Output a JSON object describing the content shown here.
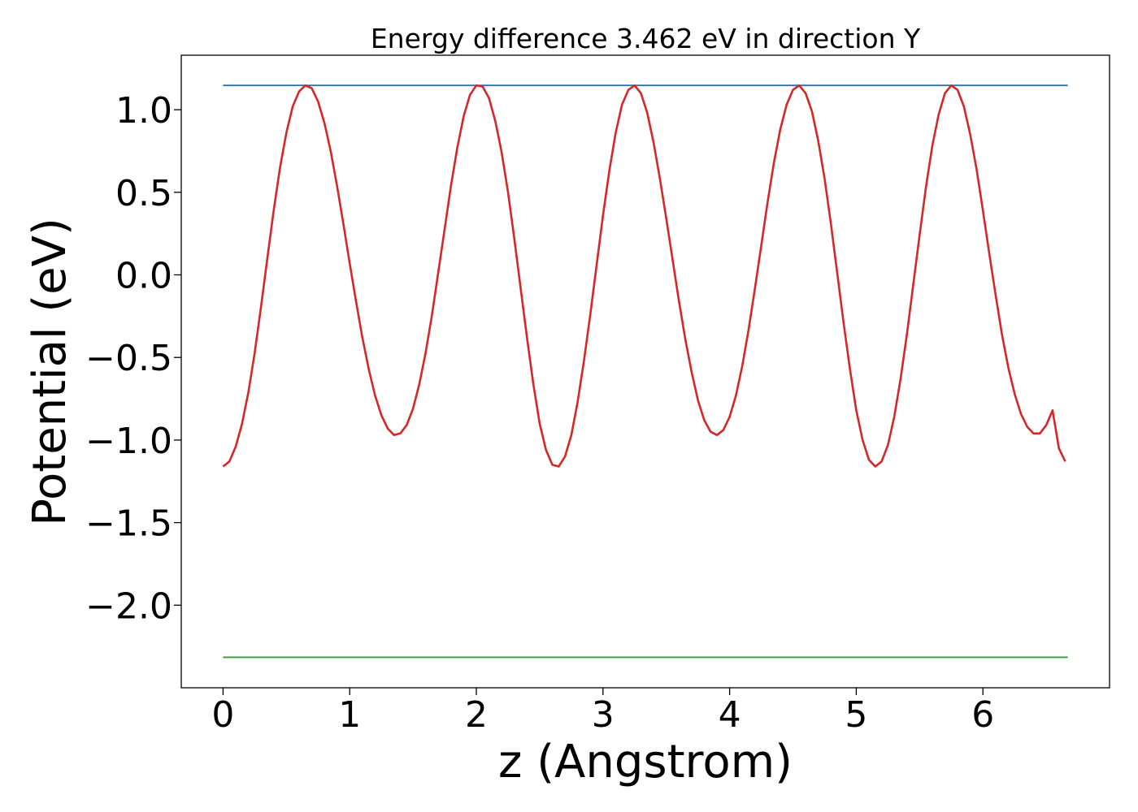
{
  "chart_data": {
    "type": "line",
    "title": "Energy difference 3.462 eV in direction Y",
    "xlabel": "z (Angstrom)",
    "ylabel": "Potential (eV)",
    "xlim": [
      -0.33,
      7.0
    ],
    "ylim": [
      -2.5,
      1.33
    ],
    "xticks": [
      0,
      1,
      2,
      3,
      4,
      5,
      6
    ],
    "xtick_labels": [
      "0",
      "1",
      "2",
      "3",
      "4",
      "5",
      "6"
    ],
    "yticks": [
      1.0,
      0.5,
      0.0,
      -0.5,
      -1.0,
      -1.5,
      -2.0
    ],
    "ytick_labels": [
      "1.0",
      "0.5",
      "0.0",
      "−0.5",
      "−1.0",
      "−1.5",
      "−2.0"
    ],
    "grid": false,
    "series": [
      {
        "color": "#1f77b4",
        "x": [
          0.0,
          6.67
        ],
        "y": [
          1.147,
          1.147
        ]
      },
      {
        "color": "#2ca02c",
        "x": [
          0.0,
          6.67
        ],
        "y": [
          -2.315,
          -2.315
        ]
      },
      {
        "color": "#d62728",
        "x": [
          0.0,
          0.05,
          0.1,
          0.15,
          0.2,
          0.25,
          0.3,
          0.35,
          0.4,
          0.45,
          0.5,
          0.55,
          0.6,
          0.65,
          0.7,
          0.75,
          0.8,
          0.85,
          0.9,
          0.95,
          1.0,
          1.05,
          1.1,
          1.15,
          1.2,
          1.25,
          1.3,
          1.35,
          1.4,
          1.45,
          1.5,
          1.55,
          1.6,
          1.65,
          1.7,
          1.75,
          1.8,
          1.85,
          1.9,
          1.95,
          2.0,
          2.05,
          2.1,
          2.15,
          2.2,
          2.25,
          2.3,
          2.35,
          2.4,
          2.45,
          2.5,
          2.55,
          2.6,
          2.65,
          2.7,
          2.75,
          2.8,
          2.85,
          2.9,
          2.95,
          3.0,
          3.05,
          3.1,
          3.15,
          3.2,
          3.25,
          3.3,
          3.35,
          3.4,
          3.45,
          3.5,
          3.55,
          3.6,
          3.65,
          3.7,
          3.75,
          3.8,
          3.85,
          3.9,
          3.95,
          4.0,
          4.05,
          4.1,
          4.15,
          4.2,
          4.25,
          4.3,
          4.35,
          4.4,
          4.45,
          4.5,
          4.55,
          4.6,
          4.65,
          4.7,
          4.75,
          4.8,
          4.85,
          4.9,
          4.95,
          5.0,
          5.05,
          5.1,
          5.15,
          5.2,
          5.25,
          5.3,
          5.35,
          5.4,
          5.45,
          5.5,
          5.55,
          5.6,
          5.65,
          5.7,
          5.75,
          5.8,
          5.85,
          5.9,
          5.95,
          6.0,
          6.05,
          6.1,
          6.15,
          6.2,
          6.25,
          6.3,
          6.35,
          6.4,
          6.45,
          6.5,
          6.55,
          6.6,
          6.65
        ],
        "y": [
          -1.16,
          -1.13,
          -1.04,
          -0.9,
          -0.71,
          -0.47,
          -0.19,
          0.1,
          0.39,
          0.65,
          0.86,
          1.02,
          1.11,
          1.147,
          1.13,
          1.05,
          0.92,
          0.75,
          0.54,
          0.31,
          0.07,
          -0.16,
          -0.38,
          -0.57,
          -0.73,
          -0.85,
          -0.93,
          -0.97,
          -0.96,
          -0.91,
          -0.81,
          -0.66,
          -0.47,
          -0.24,
          0.02,
          0.28,
          0.54,
          0.77,
          0.96,
          1.09,
          1.147,
          1.14,
          1.07,
          0.93,
          0.74,
          0.5,
          0.22,
          -0.08,
          -0.38,
          -0.66,
          -0.9,
          -1.06,
          -1.15,
          -1.16,
          -1.1,
          -0.97,
          -0.77,
          -0.52,
          -0.24,
          0.06,
          0.36,
          0.63,
          0.86,
          1.03,
          1.12,
          1.147,
          1.1,
          0.98,
          0.8,
          0.58,
          0.34,
          0.09,
          -0.16,
          -0.39,
          -0.59,
          -0.76,
          -0.88,
          -0.95,
          -0.97,
          -0.94,
          -0.86,
          -0.73,
          -0.55,
          -0.33,
          -0.08,
          0.18,
          0.44,
          0.68,
          0.88,
          1.03,
          1.12,
          1.147,
          1.1,
          0.99,
          0.81,
          0.58,
          0.31,
          0.01,
          -0.29,
          -0.57,
          -0.82,
          -1.0,
          -1.12,
          -1.16,
          -1.13,
          -1.03,
          -0.86,
          -0.63,
          -0.36,
          -0.06,
          0.24,
          0.53,
          0.78,
          0.97,
          1.1,
          1.147,
          1.12,
          1.02,
          0.85,
          0.64,
          0.39,
          0.13,
          -0.12,
          -0.36,
          -0.56,
          -0.72,
          -0.84,
          -0.92,
          -0.96,
          -0.96,
          -0.91,
          -0.82,
          -1.05,
          -1.13
        ]
      }
    ]
  }
}
